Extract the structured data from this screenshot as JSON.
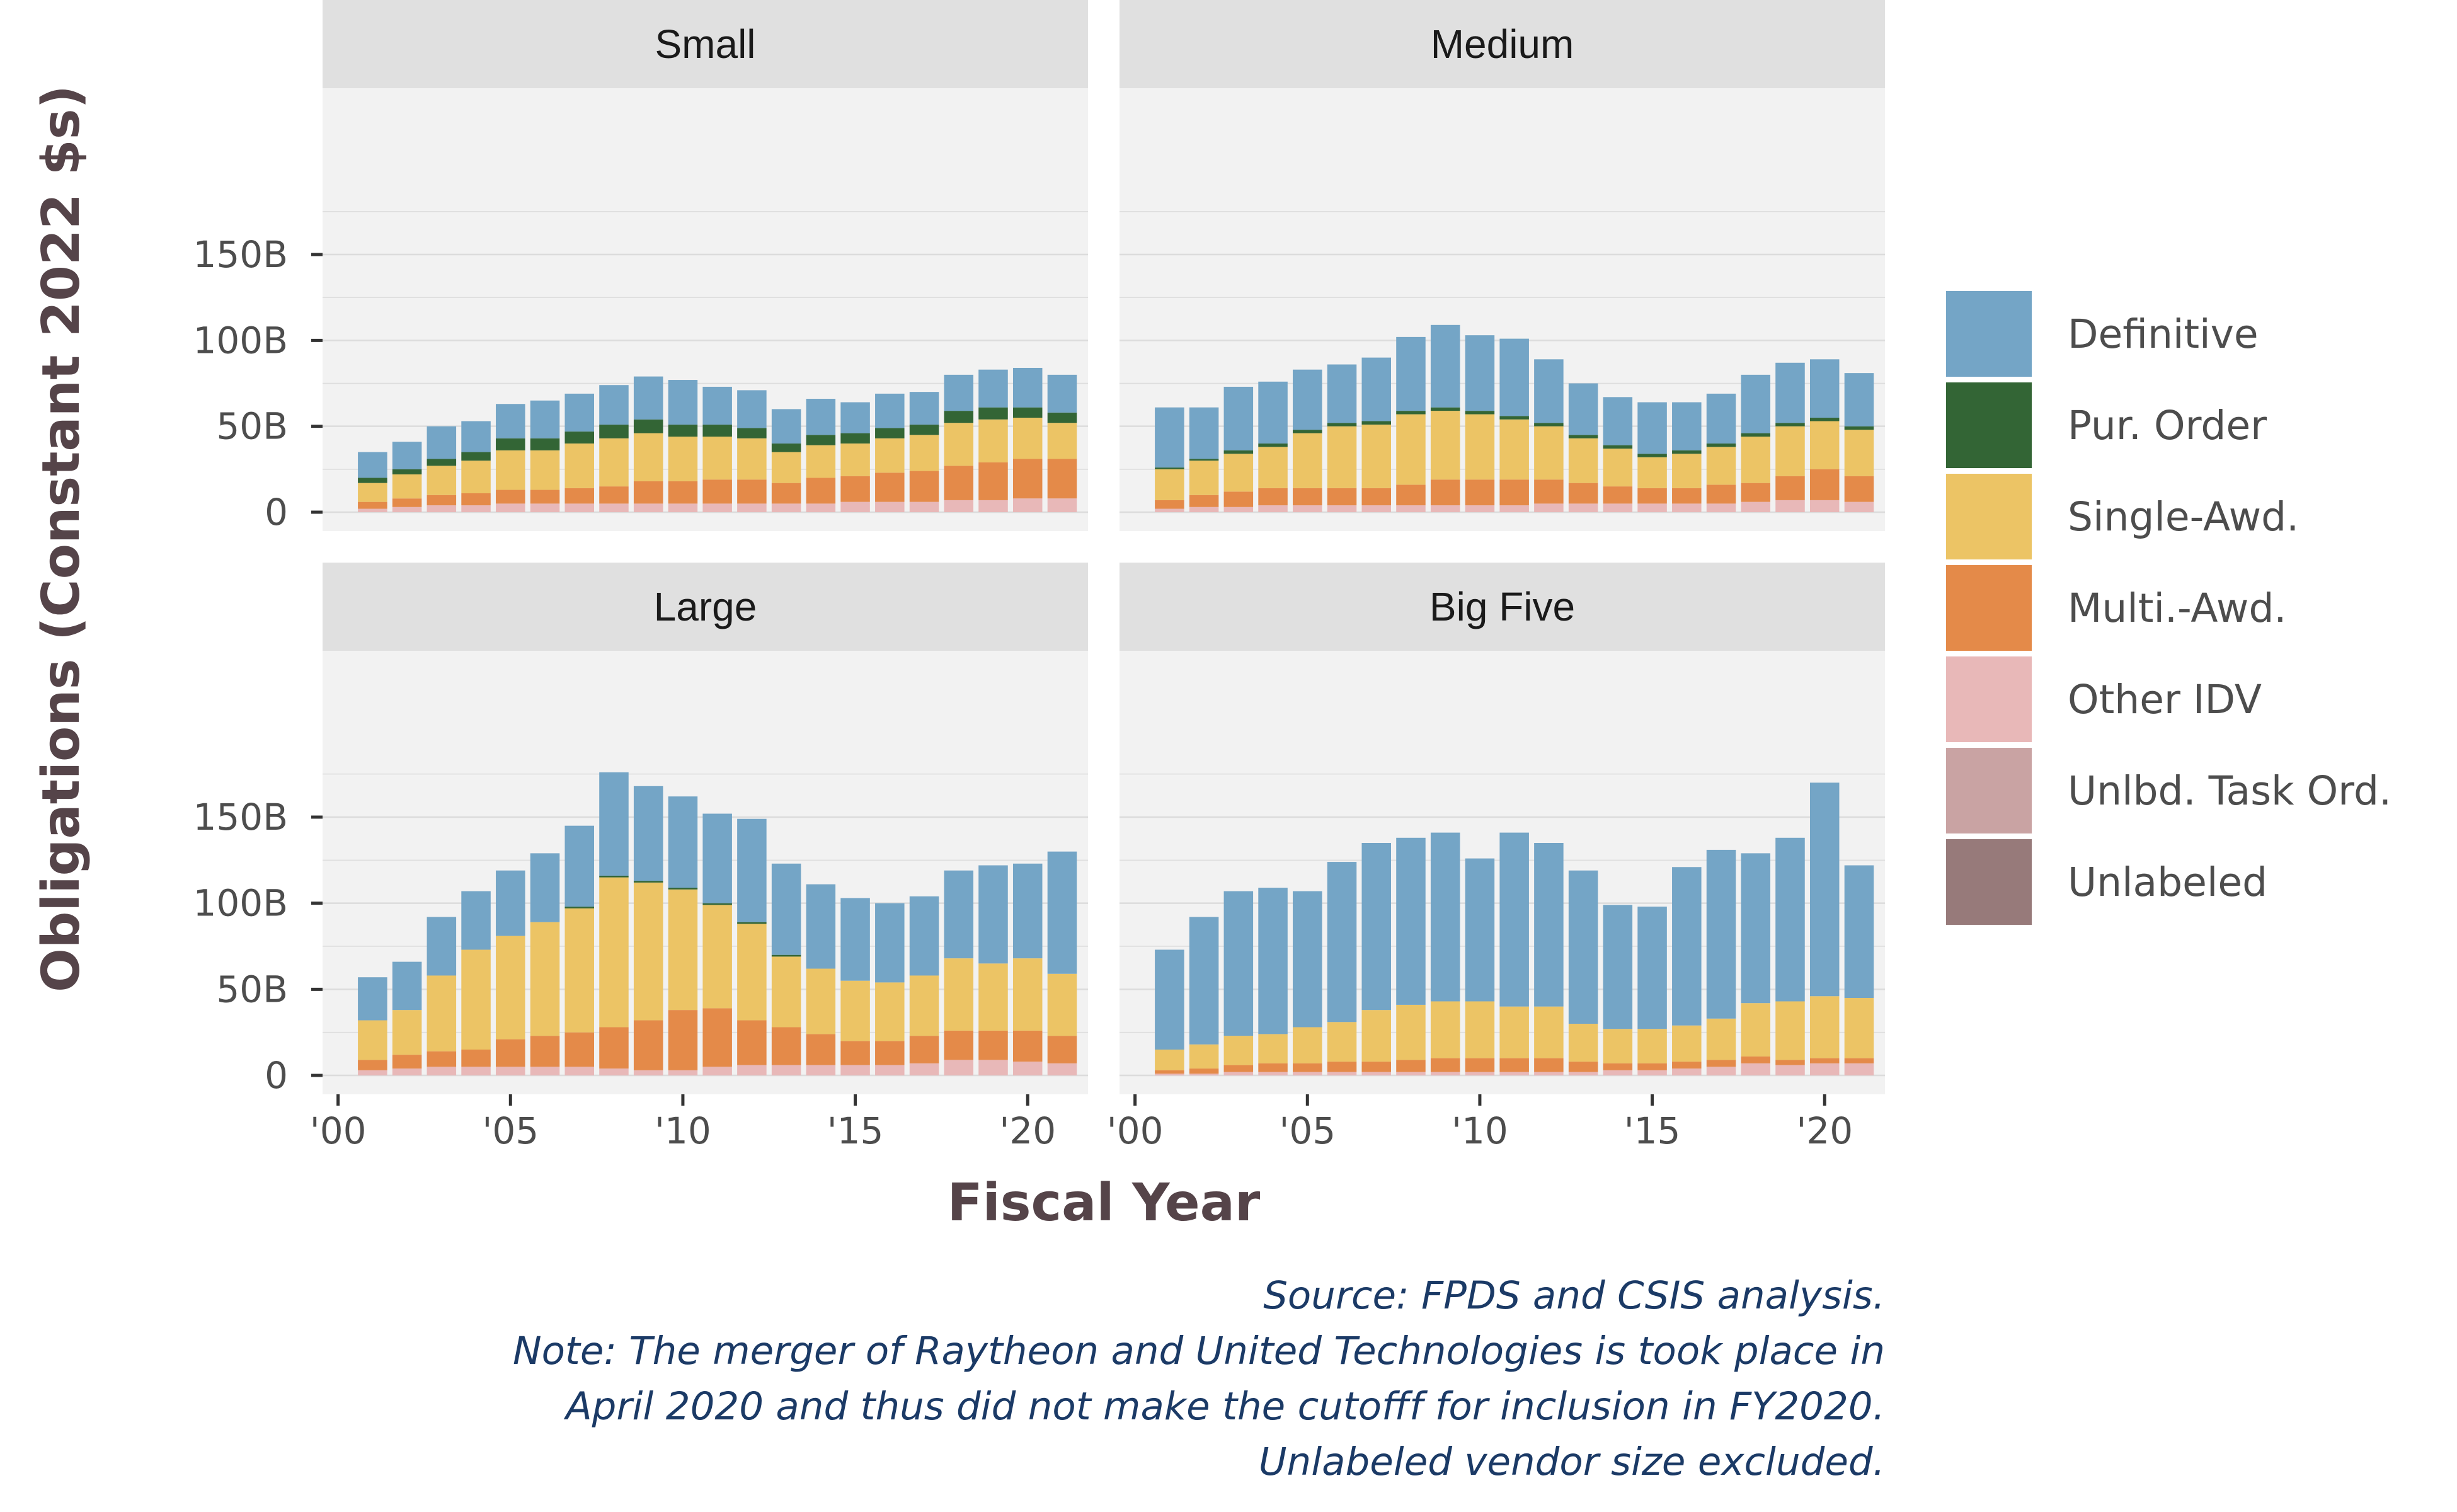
{
  "chart_data": {
    "type": "bar",
    "stacked": true,
    "xlabel": "Fiscal Year",
    "ylabel": "Obligations (Constant 2022 $s)",
    "ylim": [
      0,
      180
    ],
    "y_ticks": [
      0,
      50,
      100,
      150
    ],
    "y_tick_labels": [
      "0",
      "50B",
      "100B",
      "150B"
    ],
    "x_ticks": [
      2000,
      2005,
      2010,
      2015,
      2020
    ],
    "x_tick_labels": [
      "'00",
      "'05",
      "'10",
      "'15",
      "'20"
    ],
    "years": [
      2001,
      2002,
      2003,
      2004,
      2005,
      2006,
      2007,
      2008,
      2009,
      2010,
      2011,
      2012,
      2013,
      2014,
      2015,
      2016,
      2017,
      2018,
      2019,
      2020,
      2021
    ],
    "grid": true,
    "legend_position": "right",
    "series_order": [
      "Unlabeled",
      "Unlbd. Task Ord.",
      "Other IDV",
      "Multi.-Awd.",
      "Single-Awd.",
      "Pur. Order",
      "Definitive"
    ],
    "legend": [
      {
        "name": "Definitive",
        "color": "#74A5C6"
      },
      {
        "name": "Pur. Order",
        "color": "#336535"
      },
      {
        "name": "Single-Awd.",
        "color": "#ECC465"
      },
      {
        "name": "Multi.-Awd.",
        "color": "#E48A49"
      },
      {
        "name": "Other IDV",
        "color": "#E8B8B8"
      },
      {
        "name": "Unlbd. Task Ord.",
        "color": "#C9A3A3"
      },
      {
        "name": "Unlabeled",
        "color": "#977A7A"
      }
    ],
    "panels": [
      {
        "title": "Small",
        "series": [
          {
            "name": "Other IDV",
            "values": [
              2,
              3,
              4,
              4,
              5,
              5,
              5,
              5,
              5,
              5,
              5,
              5,
              5,
              5,
              6,
              6,
              6,
              7,
              7,
              8,
              8
            ]
          },
          {
            "name": "Multi.-Awd.",
            "values": [
              4,
              5,
              6,
              7,
              8,
              8,
              9,
              10,
              13,
              13,
              14,
              14,
              12,
              15,
              15,
              17,
              18,
              20,
              22,
              23,
              23
            ]
          },
          {
            "name": "Single-Awd.",
            "values": [
              11,
              14,
              17,
              19,
              23,
              23,
              26,
              28,
              28,
              26,
              25,
              24,
              18,
              19,
              19,
              20,
              21,
              25,
              25,
              24,
              21
            ]
          },
          {
            "name": "Pur. Order",
            "values": [
              3,
              3,
              4,
              5,
              7,
              7,
              7,
              8,
              8,
              7,
              7,
              6,
              5,
              6,
              6,
              6,
              6,
              7,
              7,
              6,
              6
            ]
          },
          {
            "name": "Definitive",
            "values": [
              15,
              16,
              19,
              18,
              20,
              22,
              22,
              23,
              25,
              26,
              22,
              22,
              20,
              21,
              18,
              20,
              19,
              21,
              22,
              23,
              22
            ]
          }
        ]
      },
      {
        "title": "Medium",
        "series": [
          {
            "name": "Other IDV",
            "values": [
              2,
              3,
              3,
              4,
              4,
              4,
              4,
              4,
              4,
              4,
              4,
              5,
              5,
              5,
              5,
              5,
              5,
              6,
              7,
              7,
              6
            ]
          },
          {
            "name": "Multi.-Awd.",
            "values": [
              5,
              7,
              9,
              10,
              10,
              10,
              10,
              12,
              15,
              15,
              15,
              14,
              12,
              10,
              9,
              9,
              11,
              11,
              14,
              18,
              15
            ]
          },
          {
            "name": "Single-Awd.",
            "values": [
              18,
              20,
              22,
              24,
              32,
              36,
              37,
              41,
              40,
              38,
              35,
              31,
              26,
              22,
              18,
              20,
              22,
              27,
              29,
              28,
              27
            ]
          },
          {
            "name": "Pur. Order",
            "values": [
              1,
              1,
              2,
              2,
              2,
              2,
              2,
              2,
              2,
              2,
              2,
              2,
              2,
              2,
              2,
              2,
              2,
              2,
              2,
              2,
              2
            ]
          },
          {
            "name": "Definitive",
            "values": [
              35,
              30,
              37,
              36,
              35,
              34,
              37,
              43,
              48,
              44,
              45,
              37,
              30,
              28,
              30,
              28,
              29,
              34,
              35,
              34,
              31
            ]
          }
        ]
      },
      {
        "title": "Large",
        "series": [
          {
            "name": "Other IDV",
            "values": [
              3,
              4,
              5,
              5,
              5,
              5,
              5,
              4,
              3,
              3,
              5,
              6,
              6,
              6,
              6,
              6,
              7,
              9,
              9,
              8,
              7
            ]
          },
          {
            "name": "Multi.-Awd.",
            "values": [
              6,
              8,
              9,
              10,
              16,
              18,
              20,
              24,
              29,
              35,
              34,
              26,
              22,
              18,
              14,
              14,
              16,
              17,
              17,
              18,
              16
            ]
          },
          {
            "name": "Single-Awd.",
            "values": [
              23,
              26,
              44,
              58,
              60,
              66,
              72,
              87,
              80,
              70,
              60,
              56,
              41,
              38,
              35,
              34,
              35,
              42,
              39,
              42,
              36
            ]
          },
          {
            "name": "Pur. Order",
            "values": [
              0,
              0,
              0,
              0,
              0,
              0,
              1,
              1,
              1,
              1,
              1,
              1,
              1,
              0,
              0,
              0,
              0,
              0,
              0,
              0,
              0
            ]
          },
          {
            "name": "Definitive",
            "values": [
              25,
              28,
              34,
              34,
              38,
              40,
              47,
              60,
              55,
              53,
              52,
              60,
              53,
              49,
              48,
              46,
              46,
              51,
              57,
              55,
              71
            ]
          }
        ]
      },
      {
        "title": "Big Five",
        "series": [
          {
            "name": "Other IDV",
            "values": [
              1,
              1,
              2,
              2,
              2,
              2,
              2,
              2,
              2,
              2,
              2,
              2,
              2,
              3,
              3,
              4,
              5,
              7,
              6,
              7,
              7
            ]
          },
          {
            "name": "Multi.-Awd.",
            "values": [
              2,
              3,
              4,
              5,
              5,
              6,
              6,
              7,
              8,
              8,
              8,
              8,
              6,
              4,
              4,
              4,
              4,
              4,
              3,
              3,
              3
            ]
          },
          {
            "name": "Single-Awd.",
            "values": [
              12,
              14,
              17,
              17,
              21,
              23,
              30,
              32,
              33,
              33,
              30,
              30,
              22,
              20,
              20,
              21,
              24,
              31,
              34,
              36,
              35
            ]
          },
          {
            "name": "Definitive",
            "values": [
              58,
              74,
              84,
              85,
              79,
              93,
              97,
              97,
              98,
              83,
              101,
              95,
              89,
              72,
              71,
              92,
              98,
              87,
              95,
              124,
              77
            ]
          }
        ]
      }
    ],
    "caption": [
      "Source: FPDS and CSIS analysis.",
      "Note: The merger of Raytheon and United Technologies is took place in",
      "April 2020 and thus did not make the cutofff for inclusion in FY2020.",
      "Unlabeled vendor size excluded."
    ]
  }
}
